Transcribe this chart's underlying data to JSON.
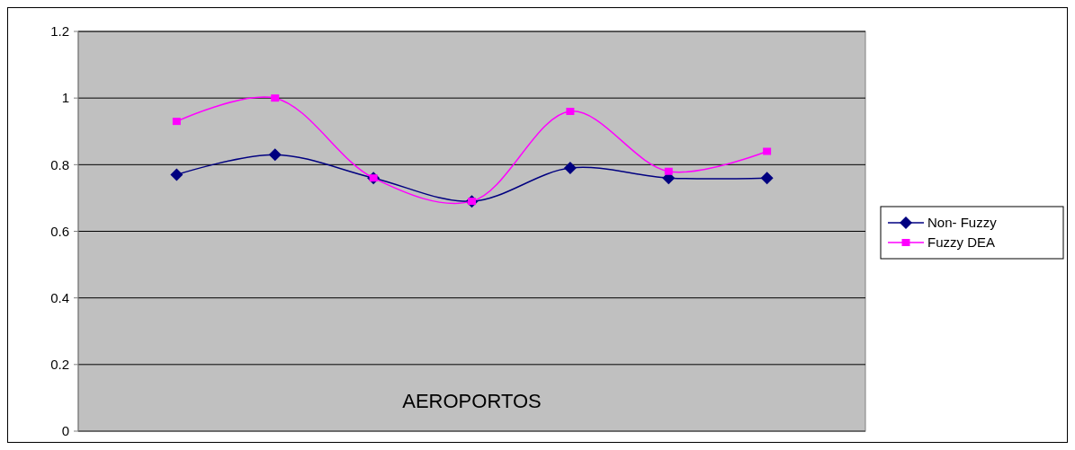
{
  "chart_data": {
    "type": "line",
    "xlabel": "AEROPORTOS",
    "categories": [
      null,
      null,
      null,
      null,
      null,
      null,
      null
    ],
    "series": [
      {
        "name": "Non- Fuzzy",
        "color": "#000080",
        "marker": "diamond",
        "values": [
          0.77,
          0.83,
          0.76,
          0.69,
          0.79,
          0.76,
          0.76
        ]
      },
      {
        "name": "Fuzzy DEA",
        "color": "#ff00ff",
        "marker": "square",
        "values": [
          0.93,
          1.0,
          0.76,
          0.69,
          0.96,
          0.78,
          0.84
        ]
      }
    ],
    "ylim": [
      0,
      1.2
    ],
    "yticks": [
      0,
      0.2,
      0.4,
      0.6,
      0.8,
      1,
      1.2
    ],
    "grid": "y",
    "legend": "right"
  }
}
